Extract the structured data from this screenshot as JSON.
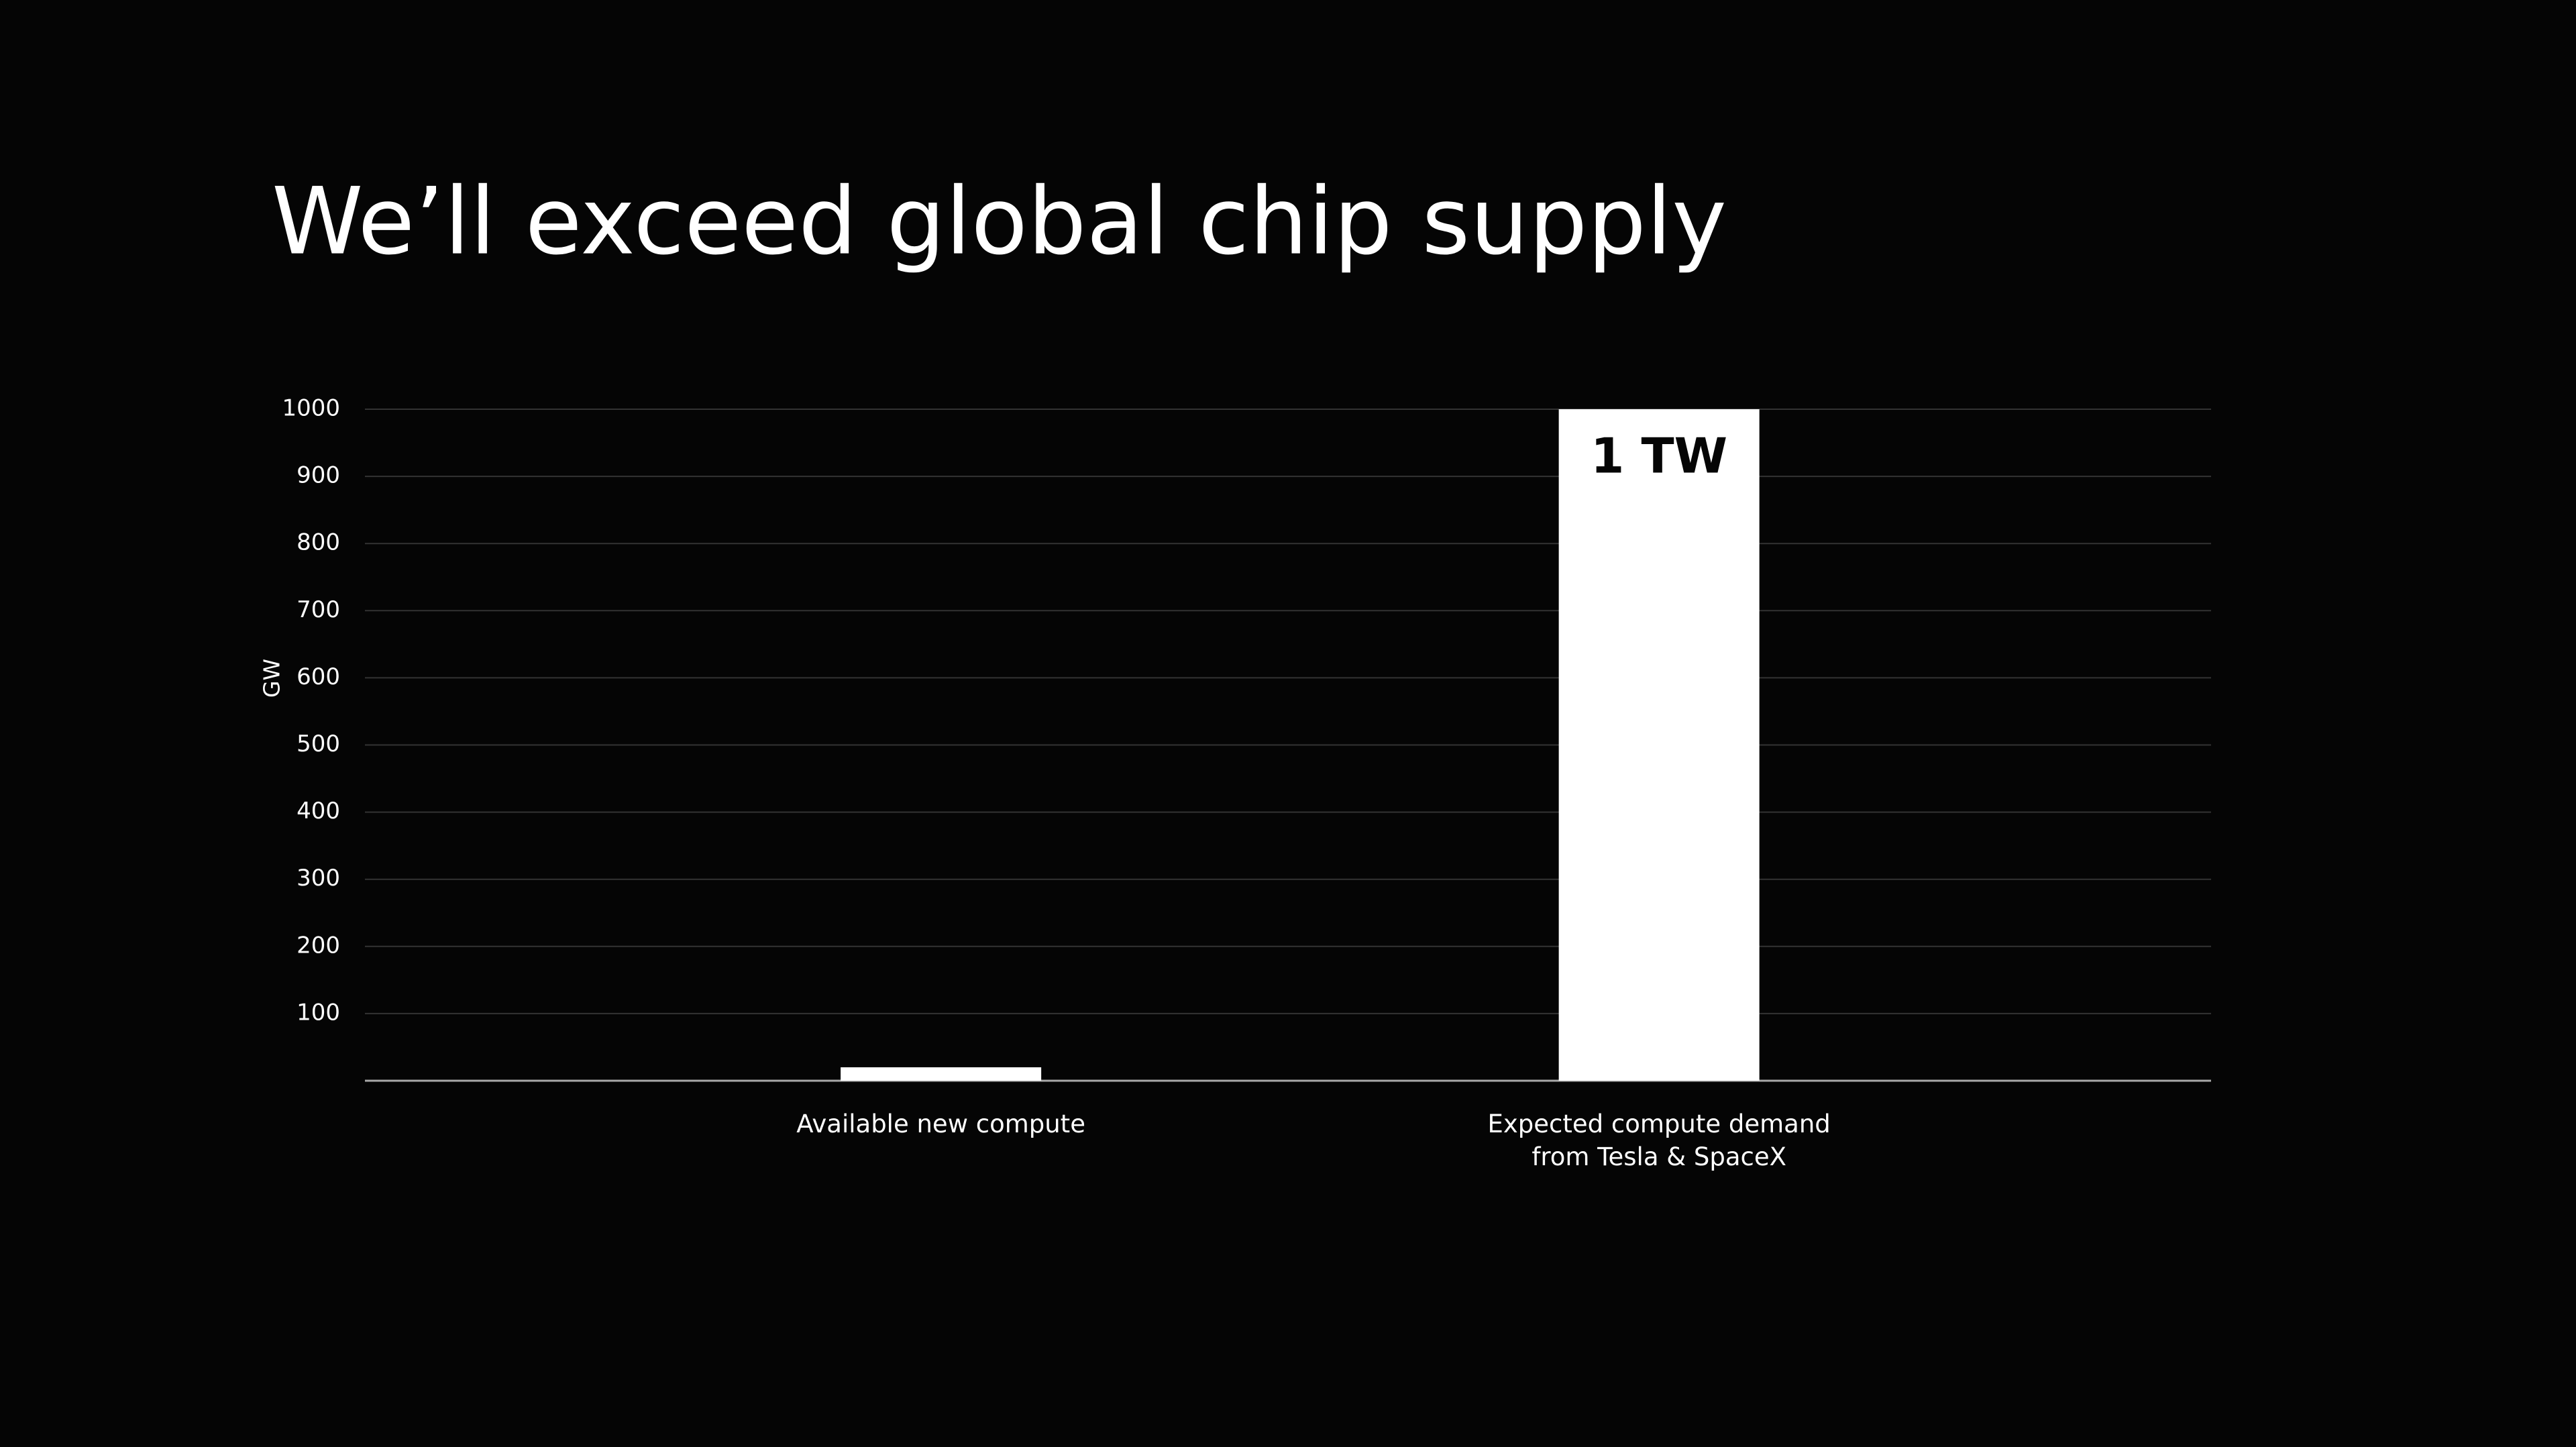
{
  "chart_data": {
    "type": "bar",
    "title": "We’ll exceed global chip supply",
    "y_label": "GW",
    "categories": [
      "Available new compute",
      "Expected compute demand\nfrom Tesla & SpaceX"
    ],
    "values": [
      20,
      1000
    ],
    "value_labels": [
      null,
      "1 TW"
    ],
    "color": "#ffffff",
    "ylim": [
      0,
      1000
    ],
    "yticks": [
      100,
      200,
      300,
      400,
      500,
      600,
      700,
      800,
      900,
      1000
    ],
    "grid": true
  }
}
